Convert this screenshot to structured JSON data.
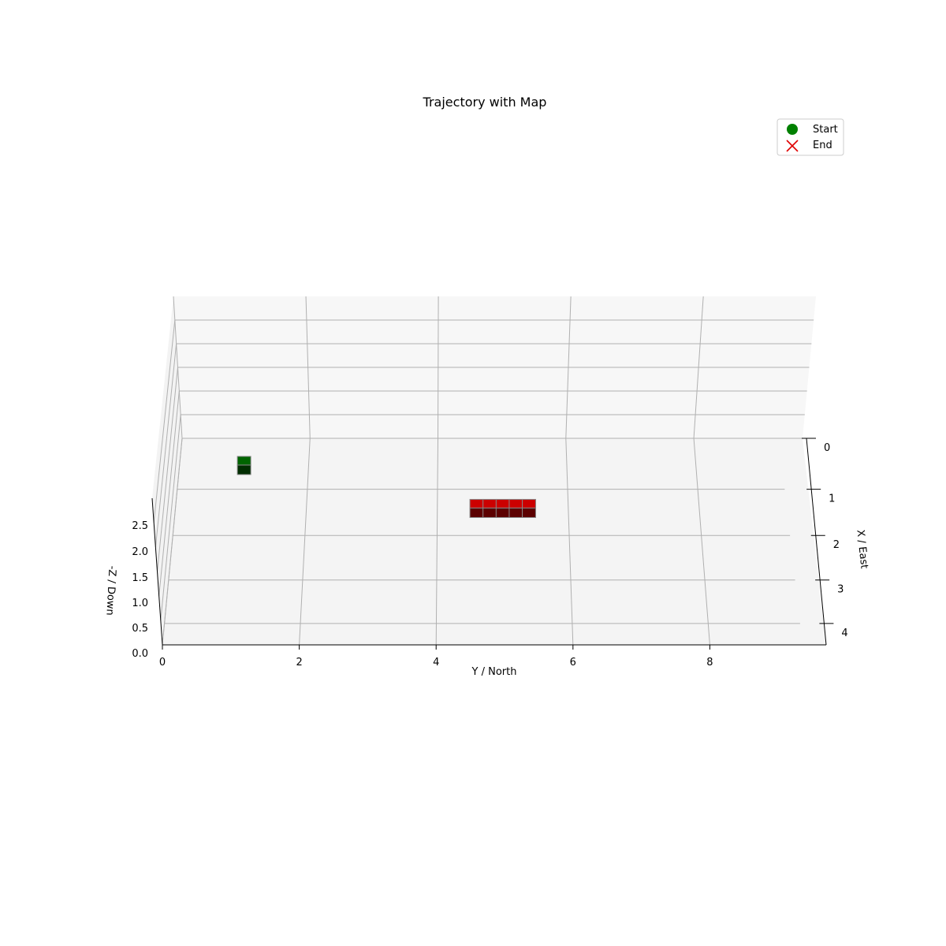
{
  "chart_data": {
    "type": "3d-trajectory-map",
    "title": "Trajectory with Map",
    "axes": {
      "y": {
        "label": "Y / North",
        "ticks": [
          "0",
          "2",
          "4",
          "6",
          "8"
        ],
        "range": [
          0,
          9.7
        ]
      },
      "x": {
        "label": "X / East",
        "ticks": [
          "0",
          "1",
          "2",
          "3",
          "4"
        ],
        "range": [
          0,
          4.5
        ]
      },
      "z": {
        "label": "-Z / Down",
        "ticks": [
          "0.0",
          "0.5",
          "1.0",
          "1.5",
          "2.0",
          "2.5"
        ],
        "range": [
          0,
          3
        ]
      }
    },
    "grid": true,
    "legend": {
      "placement": "top-right",
      "entries": [
        {
          "label": "Start",
          "marker": "circle",
          "color": "#008000"
        },
        {
          "label": "End",
          "marker": "x",
          "color": "#e00000"
        }
      ]
    },
    "blocks": [
      {
        "name": "start-block",
        "color": "#006400",
        "cells": [
          {
            "y": 1.0,
            "x": 0.5
          }
        ]
      },
      {
        "name": "goal-block",
        "color": "#cc0000",
        "cells": [
          {
            "y": 4.6,
            "x": 1.4
          },
          {
            "y": 4.8,
            "x": 1.4
          },
          {
            "y": 5.0,
            "x": 1.4
          },
          {
            "y": 5.2,
            "x": 1.4
          },
          {
            "y": 5.4,
            "x": 1.4
          }
        ]
      }
    ]
  }
}
